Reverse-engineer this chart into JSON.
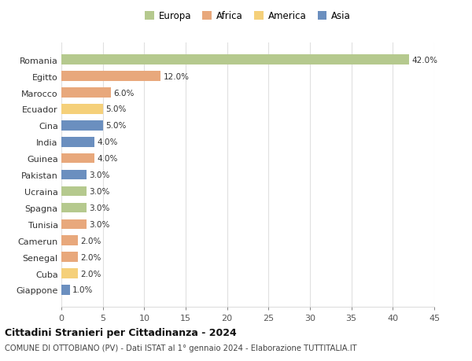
{
  "countries": [
    "Romania",
    "Egitto",
    "Marocco",
    "Ecuador",
    "Cina",
    "India",
    "Guinea",
    "Pakistan",
    "Ucraina",
    "Spagna",
    "Tunisia",
    "Camerun",
    "Senegal",
    "Cuba",
    "Giappone"
  ],
  "values": [
    42.0,
    12.0,
    6.0,
    5.0,
    5.0,
    4.0,
    4.0,
    3.0,
    3.0,
    3.0,
    3.0,
    2.0,
    2.0,
    2.0,
    1.0
  ],
  "colors": [
    "#b5c98e",
    "#e8a87c",
    "#e8a87c",
    "#f5d07a",
    "#6b8fbf",
    "#6b8fbf",
    "#e8a87c",
    "#6b8fbf",
    "#b5c98e",
    "#b5c98e",
    "#e8a87c",
    "#e8a87c",
    "#e8a87c",
    "#f5d07a",
    "#6b8fbf"
  ],
  "legend_labels": [
    "Europa",
    "Africa",
    "America",
    "Asia"
  ],
  "legend_colors": [
    "#b5c98e",
    "#e8a87c",
    "#f5d07a",
    "#6b8fbf"
  ],
  "title": "Cittadini Stranieri per Cittadinanza - 2024",
  "subtitle": "COMUNE DI OTTOBIANO (PV) - Dati ISTAT al 1° gennaio 2024 - Elaborazione TUTTITALIA.IT",
  "xlim": [
    0,
    45
  ],
  "xticks": [
    0,
    5,
    10,
    15,
    20,
    25,
    30,
    35,
    40,
    45
  ],
  "bg_color": "#ffffff",
  "grid_color": "#e0e0e0"
}
